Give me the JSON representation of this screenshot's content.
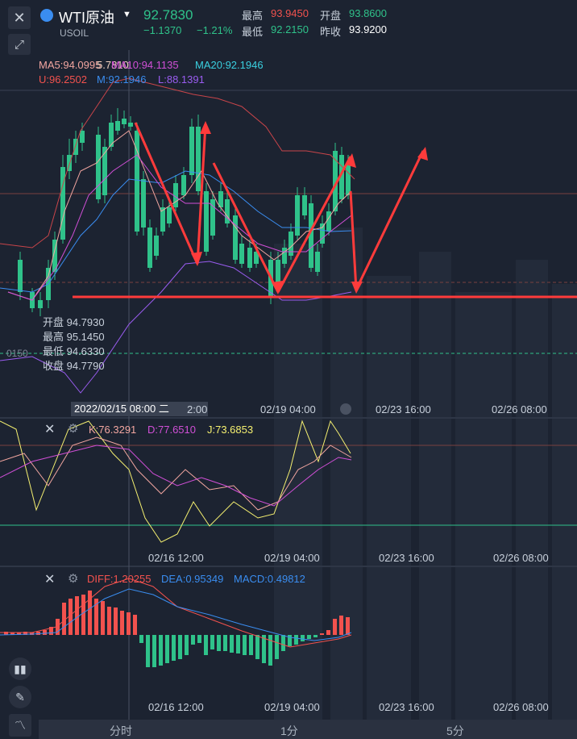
{
  "header": {
    "name": "WTI原油",
    "code": "USOIL",
    "price": "92.7830",
    "change": "−1.1370",
    "change_pct": "−1.21%",
    "high_label": "最高",
    "high_value": "93.9450",
    "open_label": "开盘",
    "open_value": "93.8600",
    "low_label": "最低",
    "low_value": "92.2150",
    "prev_close_label": "昨收",
    "prev_close_value": "93.9200"
  },
  "main_indicators": {
    "ma5": "MA5:94.0995",
    "ma10": "MA10:94.1135",
    "ma10_overlap": "5.7810",
    "ma20": "MA20:92.1946",
    "boll_u": "U:96.2502",
    "boll_m": "M:92.1946",
    "boll_l": "L:88.1391"
  },
  "ohlc_tooltip": {
    "open": "开盘 94.7930",
    "high": "最高 95.1450",
    "low": "最低 94.6330",
    "close": "收盘 94.7790"
  },
  "left_axis_label": "0150",
  "time_axis_main": {
    "current": "2022/02/15 08:00 二",
    "t1": "2:00",
    "t2": "02/19 04:00",
    "t3": "02/23 16:00",
    "t4": "02/26 08:00"
  },
  "kdj": {
    "k": "K:76.3291",
    "d": "D:77.6510",
    "j": "J:73.6853"
  },
  "time_axis_kdj": {
    "t1": "02/16 12:00",
    "t2": "02/19 04:00",
    "t3": "02/23 16:00",
    "t4": "02/26 08:00"
  },
  "macd": {
    "diff": "DIFF:1.20255",
    "dea": "DEA:0.95349",
    "macd": "MACD:0.49812"
  },
  "time_axis_macd": {
    "t1": "02/16 12:00",
    "t2": "02/19 04:00",
    "t3": "02/23 16:00",
    "t4": "02/26 08:00"
  },
  "bottom_tabs": {
    "t1": "分时",
    "t2": "1分",
    "t3": "5分"
  },
  "colors": {
    "up": "#f2524e",
    "down": "#2fc28a",
    "ma5": "#f2a6a0",
    "ma10": "#d04fd6",
    "ma20": "#3a8df0",
    "boll": "#9a5cf0",
    "kdj_k": "#f2a6a0",
    "kdj_d": "#d04fd6",
    "kdj_j": "#f5f070",
    "arrow": "#ff3b3b"
  }
}
